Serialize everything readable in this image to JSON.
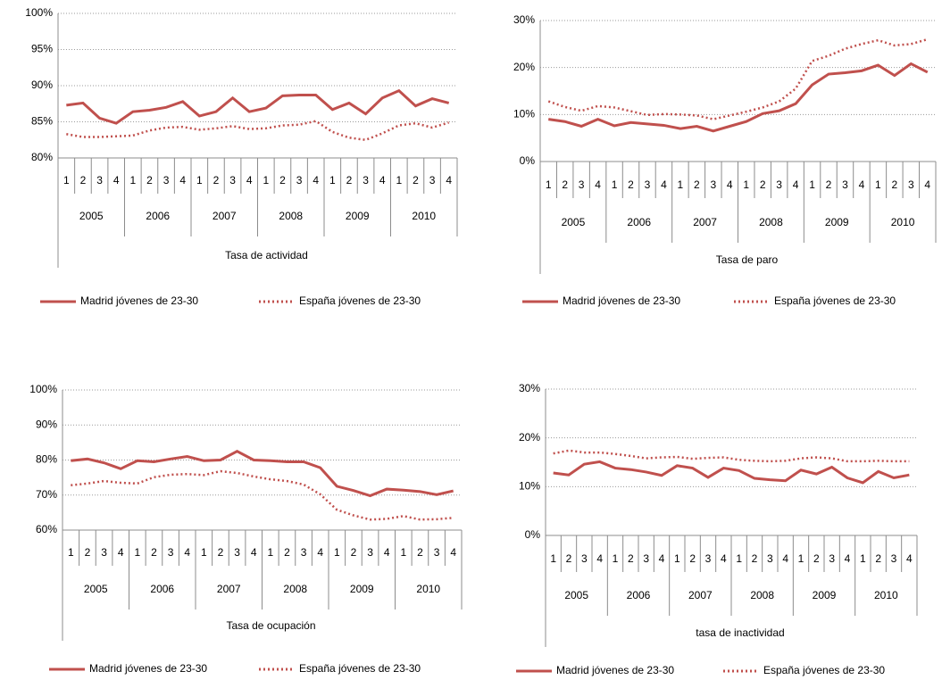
{
  "chart_data": [
    {
      "type": "line",
      "x_label": "Tasa de actividad",
      "categories": [
        "1",
        "2",
        "3",
        "4",
        "1",
        "2",
        "3",
        "4",
        "1",
        "2",
        "3",
        "4",
        "1",
        "2",
        "3",
        "4",
        "1",
        "2",
        "3",
        "4",
        "1",
        "2",
        "3",
        "4"
      ],
      "year_groups": [
        "2005",
        "2006",
        "2007",
        "2008",
        "2009",
        "2010"
      ],
      "ylim": [
        80,
        100
      ],
      "yticks": [
        {
          "value": 80,
          "label": "80%"
        },
        {
          "value": 85,
          "label": "85%"
        },
        {
          "value": 90,
          "label": "90%"
        },
        {
          "value": 95,
          "label": "95%"
        },
        {
          "value": 100,
          "label": "100%"
        }
      ],
      "grid": true,
      "series": [
        {
          "name": "Madrid jóvenes de 23-30",
          "color": "#c0504d",
          "style": "solid",
          "values": [
            87.3,
            87.6,
            85.5,
            84.8,
            86.4,
            86.6,
            87.0,
            87.8,
            85.8,
            86.4,
            88.3,
            86.4,
            86.9,
            88.6,
            88.7,
            88.7,
            86.7,
            87.6,
            86.1,
            88.3,
            89.3,
            87.2,
            88.2,
            87.6
          ]
        },
        {
          "name": "España jóvenes de 23-30",
          "color": "#c0504d",
          "style": "dotted",
          "values": [
            83.3,
            82.9,
            82.9,
            83.0,
            83.1,
            83.8,
            84.2,
            84.3,
            83.9,
            84.1,
            84.4,
            84.0,
            84.1,
            84.5,
            84.6,
            85.1,
            83.6,
            82.8,
            82.5,
            83.4,
            84.5,
            84.8,
            84.2,
            84.9
          ]
        }
      ]
    },
    {
      "type": "line",
      "x_label": "Tasa de paro",
      "categories": [
        "1",
        "2",
        "3",
        "4",
        "1",
        "2",
        "3",
        "4",
        "1",
        "2",
        "3",
        "4",
        "1",
        "2",
        "3",
        "4",
        "1",
        "2",
        "3",
        "4",
        "1",
        "2",
        "3",
        "4"
      ],
      "year_groups": [
        "2005",
        "2006",
        "2007",
        "2008",
        "2009",
        "2010"
      ],
      "ylim": [
        0,
        30
      ],
      "yticks": [
        {
          "value": 0,
          "label": "0%"
        },
        {
          "value": 10,
          "label": "10%"
        },
        {
          "value": 20,
          "label": "20%"
        },
        {
          "value": 30,
          "label": "30%"
        }
      ],
      "grid": true,
      "series": [
        {
          "name": "Madrid  jóvenes de 23-30",
          "color": "#c0504d",
          "style": "solid",
          "values": [
            9.0,
            8.5,
            7.5,
            9.0,
            7.6,
            8.3,
            8.0,
            7.7,
            7.0,
            7.5,
            6.5,
            7.5,
            8.5,
            10.2,
            10.8,
            12.3,
            16.3,
            18.6,
            18.9,
            19.3,
            20.5,
            18.3,
            20.8,
            19.0
          ]
        },
        {
          "name": "España  jóvenes de 23-30",
          "color": "#c0504d",
          "style": "dotted",
          "values": [
            12.8,
            11.6,
            10.8,
            11.8,
            11.5,
            10.7,
            9.9,
            10.1,
            10.0,
            9.8,
            9.0,
            9.8,
            10.6,
            11.5,
            12.8,
            15.5,
            21.4,
            22.5,
            24.0,
            25.0,
            25.8,
            24.7,
            25.0,
            26.0
          ]
        }
      ]
    },
    {
      "type": "line",
      "x_label": "Tasa de ocupación",
      "categories": [
        "1",
        "2",
        "3",
        "4",
        "1",
        "2",
        "3",
        "4",
        "1",
        "2",
        "3",
        "4",
        "1",
        "2",
        "3",
        "4",
        "1",
        "2",
        "3",
        "4",
        "1",
        "2",
        "3",
        "4"
      ],
      "year_groups": [
        "2005",
        "2006",
        "2007",
        "2008",
        "2009",
        "2010"
      ],
      "ylim": [
        60,
        100
      ],
      "yticks": [
        {
          "value": 60,
          "label": "60%"
        },
        {
          "value": 70,
          "label": "70%"
        },
        {
          "value": 80,
          "label": "80%"
        },
        {
          "value": 90,
          "label": "90%"
        },
        {
          "value": 100,
          "label": "100%"
        }
      ],
      "grid": true,
      "series": [
        {
          "name": "Madrid jóvenes de 23-30",
          "color": "#c0504d",
          "style": "solid",
          "values": [
            79.8,
            80.3,
            79.2,
            77.5,
            79.8,
            79.5,
            80.3,
            81.0,
            79.8,
            80.0,
            82.5,
            80.0,
            79.8,
            79.5,
            79.5,
            77.8,
            72.5,
            71.3,
            69.8,
            71.7,
            71.4,
            71.0,
            70.1,
            71.2
          ]
        },
        {
          "name": "España jóvenes de 23-30",
          "color": "#c0504d",
          "style": "dotted",
          "values": [
            72.8,
            73.3,
            74.0,
            73.5,
            73.3,
            75.1,
            75.8,
            76.0,
            75.7,
            76.8,
            76.3,
            75.3,
            74.5,
            74.0,
            73.0,
            70.2,
            65.8,
            64.2,
            63.0,
            63.2,
            64.0,
            63.0,
            63.1,
            63.5
          ]
        }
      ]
    },
    {
      "type": "line",
      "x_label": "tasa de inactividad",
      "categories": [
        "1",
        "2",
        "3",
        "4",
        "1",
        "2",
        "3",
        "4",
        "1",
        "2",
        "3",
        "4",
        "1",
        "2",
        "3",
        "4",
        "1",
        "2",
        "3",
        "4",
        "1",
        "2",
        "3",
        "4"
      ],
      "year_groups": [
        "2005",
        "2006",
        "2007",
        "2008",
        "2009",
        "2010"
      ],
      "ylim": [
        0,
        30
      ],
      "yticks": [
        {
          "value": 0,
          "label": "0%"
        },
        {
          "value": 10,
          "label": "10%"
        },
        {
          "value": 20,
          "label": "20%"
        },
        {
          "value": 30,
          "label": "30%"
        }
      ],
      "grid": true,
      "series": [
        {
          "name": "Madrid jóvenes de 23-30",
          "color": "#c0504d",
          "style": "solid",
          "values": [
            12.8,
            12.4,
            14.6,
            15.1,
            13.8,
            13.5,
            13.0,
            12.3,
            14.3,
            13.8,
            11.9,
            13.8,
            13.3,
            11.7,
            11.4,
            11.2,
            13.4,
            12.6,
            14.0,
            11.8,
            10.8,
            13.1,
            11.8,
            12.4
          ]
        },
        {
          "name": "España  jóvenes de 23-30",
          "color": "#c0504d",
          "style": "dotted",
          "values": [
            16.8,
            17.4,
            17.0,
            17.0,
            16.7,
            16.3,
            15.8,
            16.0,
            16.1,
            15.7,
            15.9,
            16.0,
            15.5,
            15.3,
            15.2,
            15.3,
            15.8,
            16.0,
            15.8,
            15.2,
            15.2,
            15.3,
            15.2,
            15.2
          ]
        }
      ]
    }
  ]
}
